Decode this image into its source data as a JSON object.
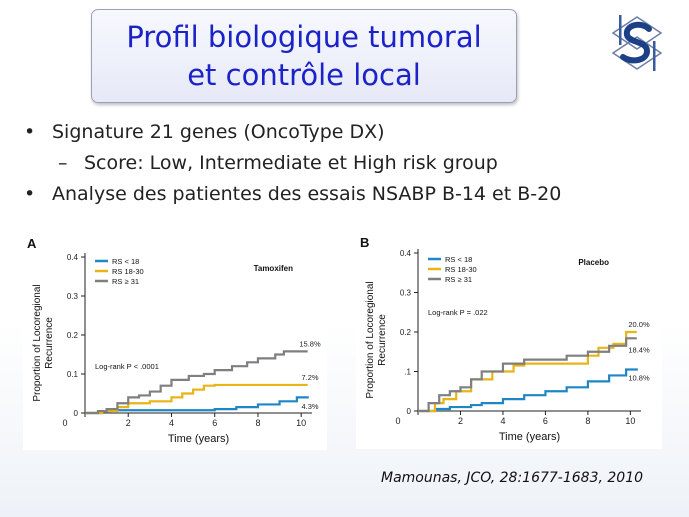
{
  "slide": {
    "title_line1": "Profil biologique tumoral",
    "title_line2": "et contrôle local",
    "bullets": [
      {
        "level": 1,
        "text": "Signature 21 genes (OncoType DX)"
      },
      {
        "level": 2,
        "text": "Score: Low, Intermediate et High risk group"
      },
      {
        "level": 1,
        "text": "Analyse des patientes des essais NSABP B-14 et B-20"
      }
    ],
    "bullet_symbol": "•",
    "sub_bullet_symbol": "–",
    "citation": "Mamounas, JCO, 28:1677-1683, 2010",
    "logo_icon": "institution-logo-icon",
    "title_color": "#1a22c8"
  },
  "chart_data": [
    {
      "type": "line",
      "panel_label": "A",
      "title": "Tamoxifen",
      "xlabel": "Time (years)",
      "ylabel": "Proportion of Locoregional Recurrence",
      "ylabel_lines": [
        "Proportion of Locoregional",
        "Recurrence"
      ],
      "xlim": [
        0,
        10.5
      ],
      "ylim": [
        0,
        0.4
      ],
      "xticks": [
        0,
        2,
        4,
        6,
        8,
        10
      ],
      "xtick_labels": [
        "0",
        "2",
        "4",
        "6",
        "8",
        "10"
      ],
      "yticks": [
        0,
        0.1,
        0.2,
        0.3,
        0.4
      ],
      "ytick_labels": [
        "0",
        "0.1",
        "0.2",
        "0.3",
        "0.4"
      ],
      "legend_position": "top-left",
      "annotation": "Log-rank P < .0001",
      "series": [
        {
          "name": "RS < 18",
          "color": "#1f86c6",
          "end_label": "4.3%",
          "x": [
            0,
            0.8,
            1.2,
            2.5,
            3.5,
            6.0,
            7.0,
            8.0,
            9.0,
            9.8,
            10.3
          ],
          "y": [
            0,
            0.005,
            0.007,
            0.007,
            0.007,
            0.01,
            0.015,
            0.022,
            0.03,
            0.04,
            0.043
          ]
        },
        {
          "name": "RS 18-30",
          "color": "#e8b418",
          "end_label": "7.2%",
          "x": [
            0,
            0.8,
            1.5,
            2.0,
            3.0,
            4.0,
            4.5,
            5.0,
            5.5,
            6.0,
            8.0,
            10.3
          ],
          "y": [
            0,
            0.005,
            0.015,
            0.025,
            0.03,
            0.04,
            0.05,
            0.06,
            0.07,
            0.072,
            0.072,
            0.072
          ]
        },
        {
          "name": "RS ≥ 31",
          "color": "#7f7f7f",
          "end_label": "15.8%",
          "x": [
            0,
            0.6,
            1.0,
            1.5,
            2.0,
            2.5,
            3.0,
            3.5,
            4.0,
            4.8,
            5.5,
            6.0,
            6.8,
            7.5,
            8.0,
            8.8,
            9.2,
            10.3
          ],
          "y": [
            0,
            0.005,
            0.01,
            0.025,
            0.04,
            0.045,
            0.055,
            0.07,
            0.085,
            0.095,
            0.1,
            0.11,
            0.12,
            0.13,
            0.14,
            0.15,
            0.158,
            0.158
          ]
        }
      ]
    },
    {
      "type": "line",
      "panel_label": "B",
      "title": "Placebo",
      "xlabel": "Time (years)",
      "ylabel": "Proportion of Locoregional Recurrence",
      "ylabel_lines": [
        "Proportion of Locoregional",
        "Recurrence"
      ],
      "xlim": [
        0,
        10.5
      ],
      "ylim": [
        0,
        0.4
      ],
      "xticks": [
        0,
        2,
        4,
        6,
        8,
        10
      ],
      "xtick_labels": [
        "0",
        "2",
        "4",
        "6",
        "8",
        "10"
      ],
      "yticks": [
        0,
        0.1,
        0.2,
        0.3,
        0.4
      ],
      "ytick_labels": [
        "0",
        ".1",
        "0.2",
        "0.3",
        "0.4"
      ],
      "legend_position": "top-left",
      "annotation": "Log-rank P = .022",
      "series": [
        {
          "name": "RS < 18",
          "color": "#1f86c6",
          "end_label": "10.8%",
          "x": [
            0,
            0.8,
            1.5,
            2.5,
            3.0,
            4.0,
            5.0,
            6.0,
            7.0,
            8.0,
            9.0,
            9.8,
            10.3
          ],
          "y": [
            0,
            0.005,
            0.01,
            0.015,
            0.02,
            0.03,
            0.04,
            0.05,
            0.06,
            0.075,
            0.09,
            0.105,
            0.108
          ]
        },
        {
          "name": "RS 18-30",
          "color": "#e8b418",
          "end_label": "20.0%",
          "x": [
            0,
            0.8,
            1.2,
            1.8,
            2.5,
            3.5,
            4.5,
            5.0,
            6.0,
            7.0,
            8.0,
            8.5,
            9.2,
            9.8,
            10.3
          ],
          "y": [
            0,
            0.02,
            0.03,
            0.05,
            0.08,
            0.1,
            0.115,
            0.12,
            0.12,
            0.12,
            0.14,
            0.16,
            0.17,
            0.2,
            0.2
          ]
        },
        {
          "name": "RS ≥ 31",
          "color": "#7f7f7f",
          "end_label": "18.4%",
          "x": [
            0,
            0.5,
            1.0,
            1.5,
            2.0,
            2.5,
            3.0,
            4.0,
            5.0,
            6.0,
            7.0,
            8.0,
            9.0,
            9.8,
            10.3
          ],
          "y": [
            0,
            0.02,
            0.04,
            0.05,
            0.06,
            0.08,
            0.1,
            0.12,
            0.13,
            0.13,
            0.14,
            0.15,
            0.165,
            0.184,
            0.184
          ]
        }
      ]
    }
  ]
}
